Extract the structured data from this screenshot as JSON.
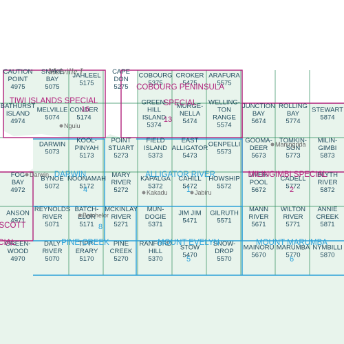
{
  "colors": {
    "land": "#e8f4ec",
    "sea": "#ffffff",
    "magenta": "#b0207a",
    "blue": "#2aa0d8",
    "green": "#2a8a5a",
    "text": "#1f4a5c"
  },
  "coast_label": "Melville I",
  "sheets": [
    {
      "name": "CAUTION POINT",
      "l1": "CAUTION",
      "l2": "POINT",
      "num": "4975"
    },
    {
      "name": "SNAKE BAY",
      "l1": "SNAKE",
      "l2": "BAY",
      "num": "5075"
    },
    {
      "name": "JAHLEEL",
      "l1": "JAHLEEL",
      "l2": "",
      "num": "5175"
    },
    {
      "name": "CAPE DON",
      "l1": "CAPE",
      "l2": "DON",
      "num": "5275"
    },
    {
      "name": "COBOURG",
      "l1": "COBOURG",
      "l2": "",
      "num": "5375"
    },
    {
      "name": "CROKER",
      "l1": "CROKER",
      "l2": "",
      "num": "5475"
    },
    {
      "name": "ARAFURA",
      "l1": "ARAFURA",
      "l2": "",
      "num": "5575"
    },
    {
      "name": "BATHURST ISLAND",
      "l1": "BATHURST",
      "l2": "ISLAND",
      "num": "4974"
    },
    {
      "name": "MELVILLE",
      "l1": "MELVILLE",
      "l2": "",
      "num": "5074"
    },
    {
      "name": "CONDER",
      "l1": "CONDER",
      "l2": "",
      "num": "5174"
    },
    {
      "name": "GREEN-HILL ISLAND",
      "l1": "GREEN-",
      "l2": "HILL",
      "l3": "ISLAND",
      "num": "5374"
    },
    {
      "name": "MURGE-NELLA",
      "l1": "MURGE-",
      "l2": "NELLA",
      "num": "5474"
    },
    {
      "name": "WELLING-TON RANGE",
      "l1": "WELLING-",
      "l2": "TON",
      "l3": "RANGE",
      "num": "5574"
    },
    {
      "name": "JUNCTION BAY",
      "l1": "JUNCTION",
      "l2": "BAY",
      "num": "5674"
    },
    {
      "name": "ROLLING BAY",
      "l1": "ROLLING",
      "l2": "BAY",
      "num": "5774"
    },
    {
      "name": "STEWART",
      "l1": "STEWART",
      "l2": "",
      "num": "5874"
    },
    {
      "name": "DARWIN",
      "l1": "DARWIN",
      "l2": "",
      "num": "5073"
    },
    {
      "name": "KOOL-PINYAH",
      "l1": "KOOL-",
      "l2": "PINYAH",
      "num": "5173"
    },
    {
      "name": "POINT STUART",
      "l1": "POINT",
      "l2": "STUART",
      "num": "5273"
    },
    {
      "name": "FIELD ISLAND",
      "l1": "FIELD",
      "l2": "ISLAND",
      "num": "5373"
    },
    {
      "name": "EAST ALLIGATOR",
      "l1": "EAST",
      "l2": "ALLIGATOR",
      "num": "5473"
    },
    {
      "name": "OENPELLI",
      "l1": "OENPELLI",
      "l2": "",
      "num": "5573"
    },
    {
      "name": "GOOMA-DEER",
      "l1": "GOOMA-",
      "l2": "DEER",
      "num": "5673"
    },
    {
      "name": "TOMKIN-SON",
      "l1": "TOMKIN-",
      "l2": "SON",
      "num": "5773"
    },
    {
      "name": "MILIN-GIMBI",
      "l1": "MILIN-",
      "l2": "GIMBI",
      "num": "5873"
    },
    {
      "name": "FOG BAY",
      "l1": "FOG",
      "l2": "BAY",
      "num": "4972"
    },
    {
      "name": "BYNOE",
      "l1": "BYNOE",
      "l2": "",
      "num": "5072"
    },
    {
      "name": "NOONAMAH",
      "l1": "NOONAMAH",
      "l2": "",
      "num": "5172"
    },
    {
      "name": "MARY RIVER",
      "l1": "MARY",
      "l2": "RIVER",
      "num": "5272"
    },
    {
      "name": "KAPALGA",
      "l1": "KAPALGA",
      "l2": "",
      "num": "5372"
    },
    {
      "name": "CAHILL",
      "l1": "CAHILL",
      "l2": "",
      "num": "5472"
    },
    {
      "name": "HOWSHIP",
      "l1": "HOWSHIP",
      "l2": "",
      "num": "5572"
    },
    {
      "name": "LIVER-POOL",
      "l1": "LIVER-",
      "l2": "POOL",
      "num": "5672"
    },
    {
      "name": "CADELL",
      "l1": "CADELL",
      "l2": "",
      "num": "5772"
    },
    {
      "name": "BLYTH RIVER",
      "l1": "BLYTH",
      "l2": "RIVER",
      "num": "5872"
    },
    {
      "name": "ANSON",
      "l1": "ANSON",
      "l2": "",
      "num": "4971"
    },
    {
      "name": "REYNOLDS RIVER",
      "l1": "REYNOLDS",
      "l2": "RIVER",
      "num": "5071"
    },
    {
      "name": "BATCH-ELOR",
      "l1": "BATCH-",
      "l2": "ELOR",
      "num": "5171"
    },
    {
      "name": "MCKINLAY RIVER",
      "l1": "MCKINLAY",
      "l2": "RIVER",
      "num": "5271"
    },
    {
      "name": "MUN-DOGIE",
      "l1": "MUN-",
      "l2": "DOGIE",
      "num": "5371"
    },
    {
      "name": "JIM JIM",
      "l1": "JIM JIM",
      "l2": "",
      "num": "5471"
    },
    {
      "name": "GILRUTH",
      "l1": "GILRUTH",
      "l2": "",
      "num": "5571"
    },
    {
      "name": "MANN RIVER",
      "l1": "MANN",
      "l2": "RIVER",
      "num": "5671"
    },
    {
      "name": "WILTON RIVER",
      "l1": "WILTON",
      "l2": "RIVER",
      "num": "5771"
    },
    {
      "name": "ANNIE CREEK",
      "l1": "ANNIE",
      "l2": "CREEK",
      "num": "5871"
    },
    {
      "name": "GREEN-WOOD",
      "l1": "GREEN-",
      "l2": "WOOD",
      "num": "4970"
    },
    {
      "name": "DALY RIVER",
      "l1": "DALY",
      "l2": "RIVER",
      "num": "5070"
    },
    {
      "name": "TIPP-ERARY",
      "l1": "TIPP-",
      "l2": "ERARY",
      "num": "5170"
    },
    {
      "name": "PINE CREEK",
      "l1": "PINE",
      "l2": "CREEK",
      "num": "5270"
    },
    {
      "name": "RANFORD HILL",
      "l1": "RANFORD",
      "l2": "HILL",
      "num": "5370"
    },
    {
      "name": "STOW",
      "l1": "STOW",
      "l2": "",
      "num": "5470"
    },
    {
      "name": "SNOW-DROP",
      "l1": "SNOW-",
      "l2": "DROP",
      "num": "5570"
    },
    {
      "name": "MAINORU",
      "l1": "MAINORU",
      "l2": "",
      "num": "5670"
    },
    {
      "name": "MARUMBA",
      "l1": "MARUMBA",
      "l2": "",
      "num": "5770"
    },
    {
      "name": "NYMBILLI",
      "l1": "NYMBILLI",
      "l2": "",
      "num": "5870"
    }
  ],
  "regions": [
    {
      "name": "TIWI ISLANDS SPECIAL",
      "number": "16",
      "color": "magenta"
    },
    {
      "name": "COBOURG PENINSULA SPECIAL",
      "l1": "COBOURG PENINSULA",
      "l2": "SPECIAL",
      "number": "13",
      "color": "magenta"
    },
    {
      "name": "DARWIN",
      "number": "4",
      "color": "blue"
    },
    {
      "name": "ALLIGATOR RIVER",
      "number": "1",
      "color": "blue"
    },
    {
      "name": "MILINGIMBI SPECIAL",
      "number": "2",
      "color": "magenta"
    },
    {
      "name": "SCOTT",
      "color": "magenta"
    },
    {
      "name": "PINE CREEK",
      "number": "8",
      "color": "blue"
    },
    {
      "name": "MOUNT EVELYN",
      "number": "5",
      "color": "blue"
    },
    {
      "name": "MOUNT MARUMBA",
      "number": "6",
      "color": "blue"
    },
    {
      "name": "CIAL",
      "color": "magenta"
    }
  ],
  "towns": [
    "Nguiu",
    "Darwin",
    "Batchelor",
    "Kakadu",
    "Jabiru",
    "Maningrida"
  ]
}
